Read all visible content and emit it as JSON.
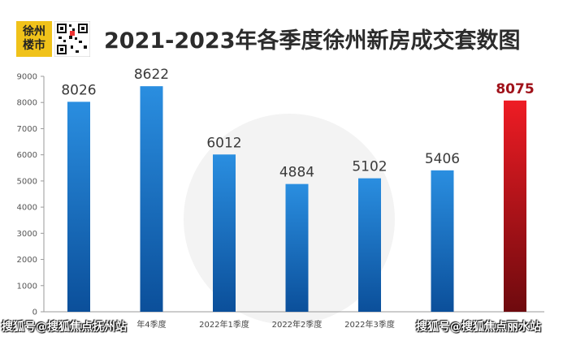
{
  "header": {
    "logo_line1": "徐州",
    "logo_line2": "楼市",
    "title": "2021-2023年各季度徐州新房成交套数图"
  },
  "watermarks": {
    "left": "搜狐号@搜狐焦点抚州站",
    "right": "搜狐号@搜狐焦点丽水站"
  },
  "colors": {
    "bar_blue": "#1d6fc0",
    "bar_red": "#c8161d",
    "highlight_label": "#a0121a"
  },
  "chart_data": {
    "type": "bar",
    "title": "2021-2023年各季度徐州新房成交套数图",
    "categories": [
      "",
      "年4季度",
      "2022年1季度",
      "2022年2季度",
      "2022年3季度",
      "",
      ""
    ],
    "values": [
      8026,
      8622,
      6012,
      4884,
      5102,
      5406,
      8075
    ],
    "highlight_index": 6,
    "yticks": [
      0,
      1000,
      2000,
      3000,
      4000,
      5000,
      6000,
      7000,
      8000,
      9000
    ],
    "ylim": [
      0,
      9000
    ],
    "grid": false,
    "legend": "none"
  }
}
